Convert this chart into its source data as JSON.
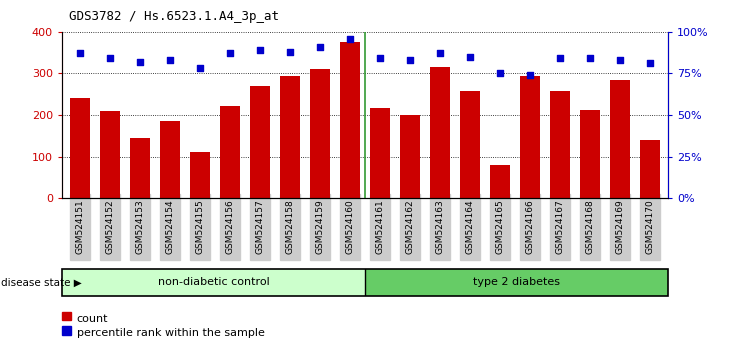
{
  "title": "GDS3782 / Hs.6523.1.A4_3p_at",
  "samples": [
    "GSM524151",
    "GSM524152",
    "GSM524153",
    "GSM524154",
    "GSM524155",
    "GSM524156",
    "GSM524157",
    "GSM524158",
    "GSM524159",
    "GSM524160",
    "GSM524161",
    "GSM524162",
    "GSM524163",
    "GSM524164",
    "GSM524165",
    "GSM524166",
    "GSM524167",
    "GSM524168",
    "GSM524169",
    "GSM524170"
  ],
  "counts": [
    240,
    210,
    145,
    185,
    110,
    222,
    270,
    293,
    310,
    375,
    218,
    200,
    315,
    258,
    80,
    295,
    258,
    212,
    285,
    140
  ],
  "percentiles": [
    87,
    84,
    82,
    83,
    78,
    87,
    89,
    88,
    91,
    96,
    84,
    83,
    87,
    85,
    75,
    74,
    84,
    84,
    83,
    81
  ],
  "non_diabetic_count": 10,
  "type2_count": 10,
  "bar_color": "#cc0000",
  "dot_color": "#0000cc",
  "non_diabetic_color": "#ccffcc",
  "type2_color": "#66cc66",
  "ylim_left": [
    0,
    400
  ],
  "ylim_right": [
    0,
    100
  ],
  "yticks_left": [
    0,
    100,
    200,
    300,
    400
  ],
  "yticks_right": [
    0,
    25,
    50,
    75,
    100
  ],
  "ytick_labels_right": [
    "0%",
    "25%",
    "50%",
    "75%",
    "100%"
  ],
  "disease_state_label": "disease state",
  "non_diabetic_label": "non-diabetic control",
  "type2_label": "type 2 diabetes",
  "legend_count_label": "count",
  "legend_percentile_label": "percentile rank within the sample",
  "tick_label_bg": "#cccccc",
  "separator_color": "#339933"
}
